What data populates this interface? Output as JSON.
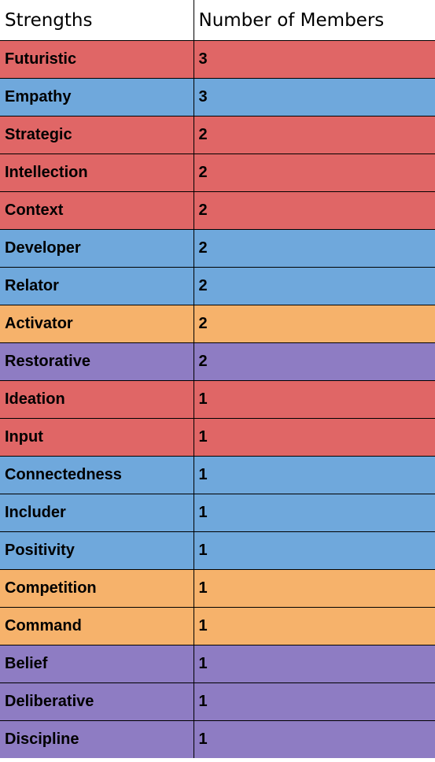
{
  "headers": [
    "Strengths",
    "Number of Members"
  ],
  "domain_colors": {
    "red": "#e06666",
    "blue": "#6fa8dc",
    "orange": "#f6b26b",
    "purple": "#8e7cc3"
  },
  "rows": [
    {
      "strength": "Futuristic",
      "members": "3",
      "color": "#e06666"
    },
    {
      "strength": "Empathy",
      "members": "3",
      "color": "#6fa8dc"
    },
    {
      "strength": "Strategic",
      "members": "2",
      "color": "#e06666"
    },
    {
      "strength": "Intellection",
      "members": "2",
      "color": "#e06666"
    },
    {
      "strength": "Context",
      "members": "2",
      "color": "#e06666"
    },
    {
      "strength": "Developer",
      "members": "2",
      "color": "#6fa8dc"
    },
    {
      "strength": "Relator",
      "members": "2",
      "color": "#6fa8dc"
    },
    {
      "strength": "Activator",
      "members": "2",
      "color": "#f6b26b"
    },
    {
      "strength": "Restorative",
      "members": "2",
      "color": "#8e7cc3"
    },
    {
      "strength": "Ideation",
      "members": "1",
      "color": "#e06666"
    },
    {
      "strength": "Input",
      "members": "1",
      "color": "#e06666"
    },
    {
      "strength": "Connectedness",
      "members": "1",
      "color": "#6fa8dc"
    },
    {
      "strength": "Includer",
      "members": "1",
      "color": "#6fa8dc"
    },
    {
      "strength": "Positivity",
      "members": "1",
      "color": "#6fa8dc"
    },
    {
      "strength": "Competition",
      "members": "1",
      "color": "#f6b26b"
    },
    {
      "strength": "Command",
      "members": "1",
      "color": "#f6b26b"
    },
    {
      "strength": "Belief",
      "members": "1",
      "color": "#8e7cc3"
    },
    {
      "strength": "Deliberative",
      "members": "1",
      "color": "#8e7cc3"
    },
    {
      "strength": "Discipline",
      "members": "1",
      "color": "#8e7cc3"
    }
  ]
}
